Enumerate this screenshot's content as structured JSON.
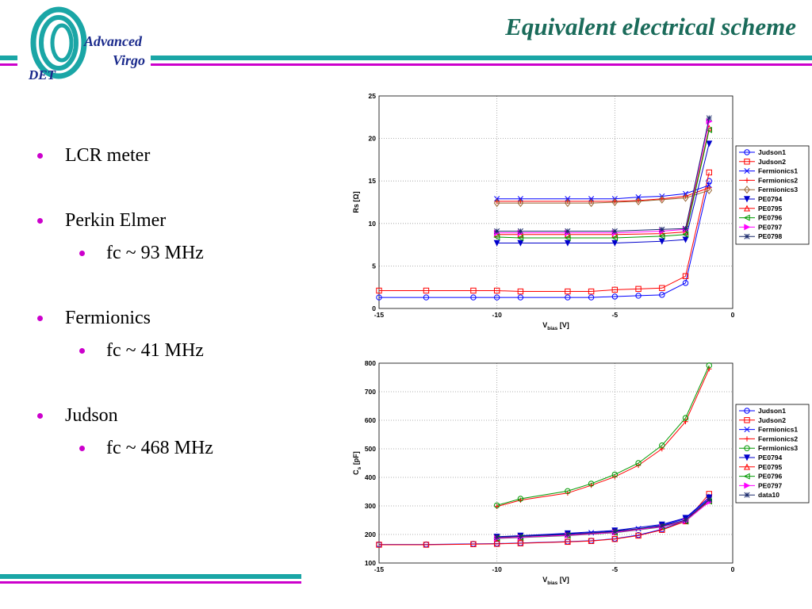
{
  "header": {
    "title": "Equivalent electrical scheme",
    "logo_word1": "Advanced",
    "logo_word2": "Virgo",
    "logo_det": "DET"
  },
  "colors": {
    "teal": "#1aa6a6",
    "magenta": "#cc00cc",
    "navy": "#1a2a8c",
    "title_green": "#1a6b5a"
  },
  "bullets": [
    {
      "text": "LCR meter",
      "sub": null
    },
    {
      "text": "Perkin Elmer",
      "sub": "fc ~ 93 MHz"
    },
    {
      "text": "Fermionics",
      "sub": "fc ~ 41 MHz"
    },
    {
      "text": "Judson",
      "sub": "fc ~ 468 MHz"
    }
  ],
  "chart_data": [
    {
      "type": "line",
      "xlabel_main": "V",
      "xlabel_sub": "bias",
      "xlabel_unit": "[V]",
      "ylabel": "Rs [Ω]",
      "xlim": [
        -15,
        0
      ],
      "ylim": [
        0,
        25
      ],
      "xticks": [
        -15,
        -10,
        -5,
        0
      ],
      "yticks": [
        0,
        5,
        10,
        15,
        20,
        25
      ],
      "grid": true,
      "legend_position": "right",
      "series": [
        {
          "name": "Judson1",
          "color": "#0000ff",
          "marker": "o",
          "x": [
            -15,
            -13,
            -11,
            -10,
            -9,
            -7,
            -6,
            -5,
            -4,
            -3,
            -2,
            -1
          ],
          "y": [
            1.3,
            1.3,
            1.3,
            1.3,
            1.3,
            1.3,
            1.3,
            1.4,
            1.5,
            1.6,
            3.0,
            15.0
          ]
        },
        {
          "name": "Judson2",
          "color": "#ff0000",
          "marker": "s",
          "x": [
            -15,
            -13,
            -11,
            -10,
            -9,
            -7,
            -6,
            -5,
            -4,
            -3,
            -2,
            -1
          ],
          "y": [
            2.1,
            2.1,
            2.1,
            2.1,
            2.0,
            2.0,
            2.0,
            2.2,
            2.3,
            2.4,
            3.8,
            16.0
          ]
        },
        {
          "name": "Fermionics1",
          "color": "#0000ff",
          "marker": "x",
          "x": [
            -10,
            -9,
            -7,
            -6,
            -5,
            -4,
            -3,
            -2,
            -1
          ],
          "y": [
            12.9,
            12.9,
            12.9,
            12.9,
            12.9,
            13.1,
            13.2,
            13.5,
            14.5
          ]
        },
        {
          "name": "Fermionics2",
          "color": "#ff0000",
          "marker": "+",
          "x": [
            -10,
            -9,
            -7,
            -6,
            -5,
            -4,
            -3,
            -2,
            -1
          ],
          "y": [
            12.6,
            12.6,
            12.6,
            12.6,
            12.6,
            12.7,
            12.9,
            13.2,
            14.2
          ]
        },
        {
          "name": "Fermionics3",
          "color": "#996633",
          "marker": "d",
          "x": [
            -10,
            -9,
            -7,
            -6,
            -5,
            -4,
            -3,
            -2,
            -1
          ],
          "y": [
            12.4,
            12.4,
            12.4,
            12.4,
            12.5,
            12.6,
            12.8,
            13.0,
            13.9
          ]
        },
        {
          "name": "PE0794",
          "color": "#0000cc",
          "marker": "v",
          "x": [
            -10,
            -9,
            -7,
            -5,
            -3,
            -2,
            -1
          ],
          "y": [
            7.7,
            7.7,
            7.7,
            7.7,
            7.9,
            8.1,
            19.4
          ]
        },
        {
          "name": "PE0795",
          "color": "#ff0000",
          "marker": "^",
          "x": [
            -10,
            -9,
            -7,
            -5,
            -3,
            -2,
            -1
          ],
          "y": [
            8.7,
            8.7,
            8.7,
            8.7,
            8.8,
            9.0,
            21.2
          ]
        },
        {
          "name": "PE0796",
          "color": "#009900",
          "marker": "<",
          "x": [
            -10,
            -9,
            -7,
            -5,
            -3,
            -2,
            -1
          ],
          "y": [
            8.4,
            8.3,
            8.3,
            8.3,
            8.5,
            8.7,
            21.0
          ]
        },
        {
          "name": "PE0797",
          "color": "#ff00ff",
          "marker": ">",
          "x": [
            -10,
            -9,
            -7,
            -5,
            -3,
            -2,
            -1
          ],
          "y": [
            8.9,
            8.9,
            8.9,
            8.9,
            9.1,
            9.3,
            22.0
          ]
        },
        {
          "name": "PE0798",
          "color": "#1a2a6c",
          "marker": "*",
          "x": [
            -10,
            -9,
            -7,
            -5,
            -3,
            -2,
            -1
          ],
          "y": [
            9.1,
            9.1,
            9.1,
            9.1,
            9.3,
            9.4,
            22.4
          ]
        }
      ]
    },
    {
      "type": "line",
      "xlabel_main": "V",
      "xlabel_sub": "bias",
      "xlabel_unit": "[V]",
      "ylabel_main": "C",
      "ylabel_sub": "s",
      "ylabel_unit": "[pF]",
      "xlim": [
        -15,
        0
      ],
      "ylim": [
        100,
        800
      ],
      "xticks": [
        -15,
        -10,
        -5,
        0
      ],
      "yticks": [
        100,
        200,
        300,
        400,
        500,
        600,
        700,
        800
      ],
      "grid": true,
      "legend_position": "right",
      "series": [
        {
          "name": "Judson1",
          "color": "#0000ff",
          "marker": "o",
          "x": [
            -15,
            -13,
            -11,
            -10,
            -9,
            -7,
            -6,
            -5,
            -4,
            -3,
            -2,
            -1
          ],
          "y": [
            165,
            165,
            167,
            168,
            170,
            175,
            178,
            185,
            198,
            218,
            248,
            318
          ]
        },
        {
          "name": "Judson2",
          "color": "#ff0000",
          "marker": "s",
          "x": [
            -15,
            -13,
            -11,
            -10,
            -9,
            -7,
            -6,
            -5,
            -4,
            -3,
            -2,
            -1
          ],
          "y": [
            164,
            164,
            166,
            167,
            169,
            174,
            177,
            184,
            196,
            216,
            246,
            342
          ]
        },
        {
          "name": "Fermionics1",
          "color": "#0000ff",
          "marker": "x",
          "x": [
            -10,
            -9,
            -7,
            -6,
            -5,
            -4,
            -3,
            -2,
            -1
          ],
          "y": [
            190,
            195,
            202,
            206,
            212,
            220,
            232,
            255,
            325
          ]
        },
        {
          "name": "Fermionics2",
          "color": "#ff0000",
          "marker": "+",
          "x": [
            -10,
            -9,
            -7,
            -6,
            -5,
            -4,
            -3,
            -2,
            -1
          ],
          "y": [
            298,
            320,
            345,
            372,
            402,
            442,
            500,
            595,
            780
          ]
        },
        {
          "name": "Fermionics3",
          "color": "#009900",
          "marker": "o",
          "x": [
            -10,
            -9,
            -7,
            -6,
            -5,
            -4,
            -3,
            -2,
            -1
          ],
          "y": [
            302,
            325,
            352,
            378,
            410,
            450,
            512,
            608,
            792
          ]
        },
        {
          "name": "PE0794",
          "color": "#0000cc",
          "marker": "v",
          "x": [
            -10,
            -9,
            -7,
            -5,
            -3,
            -2,
            -1
          ],
          "y": [
            192,
            196,
            204,
            214,
            235,
            258,
            330
          ]
        },
        {
          "name": "PE0795",
          "color": "#ff0000",
          "marker": "^",
          "x": [
            -10,
            -9,
            -7,
            -5,
            -3,
            -2,
            -1
          ],
          "y": [
            188,
            190,
            198,
            208,
            228,
            248,
            318
          ]
        },
        {
          "name": "PE0796",
          "color": "#009900",
          "marker": "<",
          "x": [
            -10,
            -9,
            -7,
            -5,
            -3,
            -2,
            -1
          ],
          "y": [
            186,
            189,
            196,
            206,
            226,
            246,
            316
          ]
        },
        {
          "name": "PE0797",
          "color": "#ff00ff",
          "marker": ">",
          "x": [
            -10,
            -9,
            -7,
            -5,
            -3,
            -2,
            -1
          ],
          "y": [
            187,
            190,
            197,
            207,
            227,
            247,
            314
          ]
        },
        {
          "name": "data10",
          "color": "#1a2a6c",
          "marker": "*",
          "x": [
            -10,
            -9,
            -7,
            -5,
            -3,
            -2,
            -1
          ],
          "y": [
            190,
            193,
            200,
            210,
            230,
            250,
            322
          ]
        }
      ]
    }
  ]
}
